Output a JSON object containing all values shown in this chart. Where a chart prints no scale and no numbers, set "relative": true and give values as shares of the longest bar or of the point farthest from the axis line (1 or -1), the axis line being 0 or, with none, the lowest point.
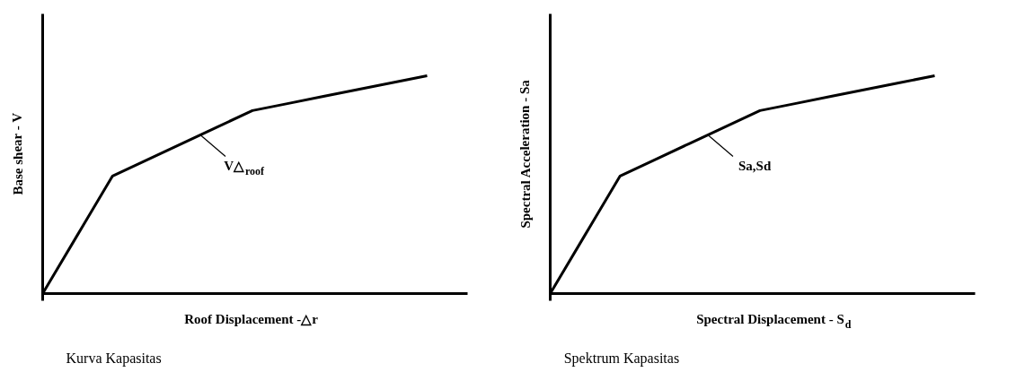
{
  "chart_data": [
    {
      "type": "line",
      "relative": true,
      "xlabel": "Roof Displacement -△r",
      "ylabel": "Base shear - V",
      "categories": [
        null,
        null,
        null,
        null,
        null,
        null,
        null,
        null,
        null,
        null,
        null,
        null
      ],
      "marker": "none",
      "line_style": "solid",
      "series": [
        {
          "color": "#000000",
          "values": [
            0,
            0.27,
            0.54,
            0.615,
            0.69,
            0.765,
            0.84,
            0.872,
            0.904,
            0.936,
            0.968,
            1
          ]
        }
      ],
      "annotations": [
        "V△$_{roof}$",
        "Kurva Kapasitas"
      ]
    },
    {
      "type": "line",
      "relative": true,
      "xlabel": "Spectral Displacement - S$_{d}$",
      "ylabel": "Spectral Acceleration - Sa",
      "categories": [
        null,
        null,
        null,
        null,
        null,
        null,
        null,
        null,
        null,
        null,
        null,
        null
      ],
      "marker": "none",
      "line_style": "solid",
      "series": [
        {
          "color": "#000000",
          "values": [
            0,
            0.27,
            0.54,
            0.615,
            0.69,
            0.765,
            0.84,
            0.872,
            0.904,
            0.936,
            0.968,
            1
          ]
        }
      ],
      "annotations": [
        "Sa,Sd",
        "Spektrum Kapasitas"
      ]
    }
  ]
}
